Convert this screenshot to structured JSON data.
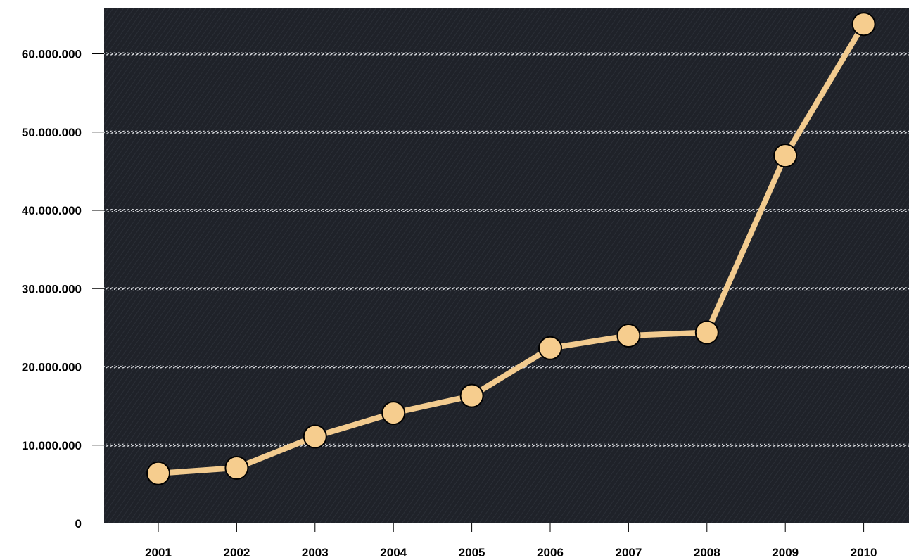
{
  "colors": {
    "plot_background": "#1f2229",
    "gridline": "#c9ccd1",
    "line": "#f2cb8f",
    "marker_fill": "#f6cd8e",
    "marker_stroke": "#000000",
    "label": "#000000"
  },
  "chart_data": {
    "type": "line",
    "title": "",
    "xlabel": "",
    "ylabel": "",
    "categories": [
      "2001",
      "2002",
      "2003",
      "2004",
      "2005",
      "2006",
      "2007",
      "2008",
      "2009",
      "2010"
    ],
    "values": [
      6400000,
      7100000,
      11100000,
      14100000,
      16300000,
      22400000,
      24000000,
      24400000,
      47000000,
      63800000
    ],
    "ylim": [
      0,
      65000000
    ],
    "yticks": [
      0,
      10000000,
      20000000,
      30000000,
      40000000,
      50000000,
      60000000
    ],
    "ytick_labels": [
      "0",
      "10.000.000",
      "20.000.000",
      "30.000.000",
      "40.000.000",
      "50.000.000",
      "60.000.000"
    ],
    "grid": true,
    "legend": "none",
    "marker": "circle"
  }
}
